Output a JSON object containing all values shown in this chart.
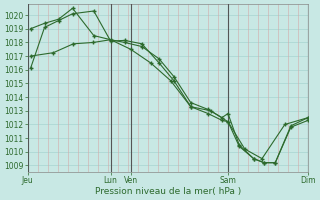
{
  "title": "Pression niveau de la mer( hPa )",
  "bg_color": "#c8e8e4",
  "line_color": "#2d6a2d",
  "grid_h_color": "#a8d4d0",
  "grid_v_color": "#d4a8a8",
  "vline_color": "#555555",
  "ylim": [
    1008.5,
    1020.8
  ],
  "yticks": [
    1009,
    1010,
    1011,
    1012,
    1013,
    1014,
    1015,
    1016,
    1017,
    1018,
    1019,
    1020
  ],
  "xlim": [
    0,
    7
  ],
  "xtick_positions": [
    0.0,
    2.07,
    2.57,
    5.0,
    7.0
  ],
  "xtick_labels": [
    "Jeu",
    "Lun",
    "Ven",
    "Sam",
    "Dim"
  ],
  "vline_positions": [
    0.0,
    2.07,
    2.57,
    5.0,
    7.0
  ],
  "num_v_gridlines": 28,
  "s1_x": [
    0.07,
    0.42,
    0.77,
    1.12,
    1.65,
    2.07,
    2.42,
    2.85,
    3.28,
    3.65,
    4.07,
    4.5,
    4.85,
    5.0,
    5.28,
    5.64,
    5.9,
    6.18,
    6.57,
    7.0
  ],
  "s1_y": [
    1016.1,
    1019.1,
    1019.6,
    1020.1,
    1020.3,
    1018.1,
    1018.15,
    1017.9,
    1016.5,
    1015.2,
    1013.3,
    1012.8,
    1012.3,
    1012.2,
    1010.4,
    1009.5,
    1009.2,
    1009.2,
    1011.8,
    1012.3
  ],
  "s2_x": [
    0.07,
    0.42,
    0.77,
    1.12,
    1.65,
    2.07,
    2.42,
    2.85,
    3.28,
    3.65,
    4.07,
    4.5,
    4.85,
    5.0,
    5.28,
    5.64,
    5.9,
    6.18,
    6.57,
    7.0
  ],
  "s2_y": [
    1019.0,
    1019.4,
    1019.7,
    1020.5,
    1018.5,
    1018.2,
    1018.0,
    1017.7,
    1016.8,
    1015.5,
    1013.6,
    1013.1,
    1012.5,
    1012.8,
    1010.5,
    1009.5,
    1009.2,
    1009.2,
    1011.9,
    1012.5
  ],
  "s3_x": [
    0.07,
    0.64,
    1.14,
    1.64,
    2.07,
    2.57,
    3.07,
    3.57,
    4.07,
    4.57,
    5.0,
    5.42,
    5.85,
    6.42,
    7.0
  ],
  "s3_y": [
    1017.0,
    1017.25,
    1017.9,
    1018.0,
    1018.2,
    1017.5,
    1016.5,
    1015.2,
    1013.3,
    1013.0,
    1012.2,
    1010.2,
    1009.5,
    1012.0,
    1012.5
  ],
  "tick_fontsize": 5.5,
  "xlabel_fontsize": 6.5,
  "marker": "+",
  "markersize": 3.5,
  "linewidth": 0.8
}
